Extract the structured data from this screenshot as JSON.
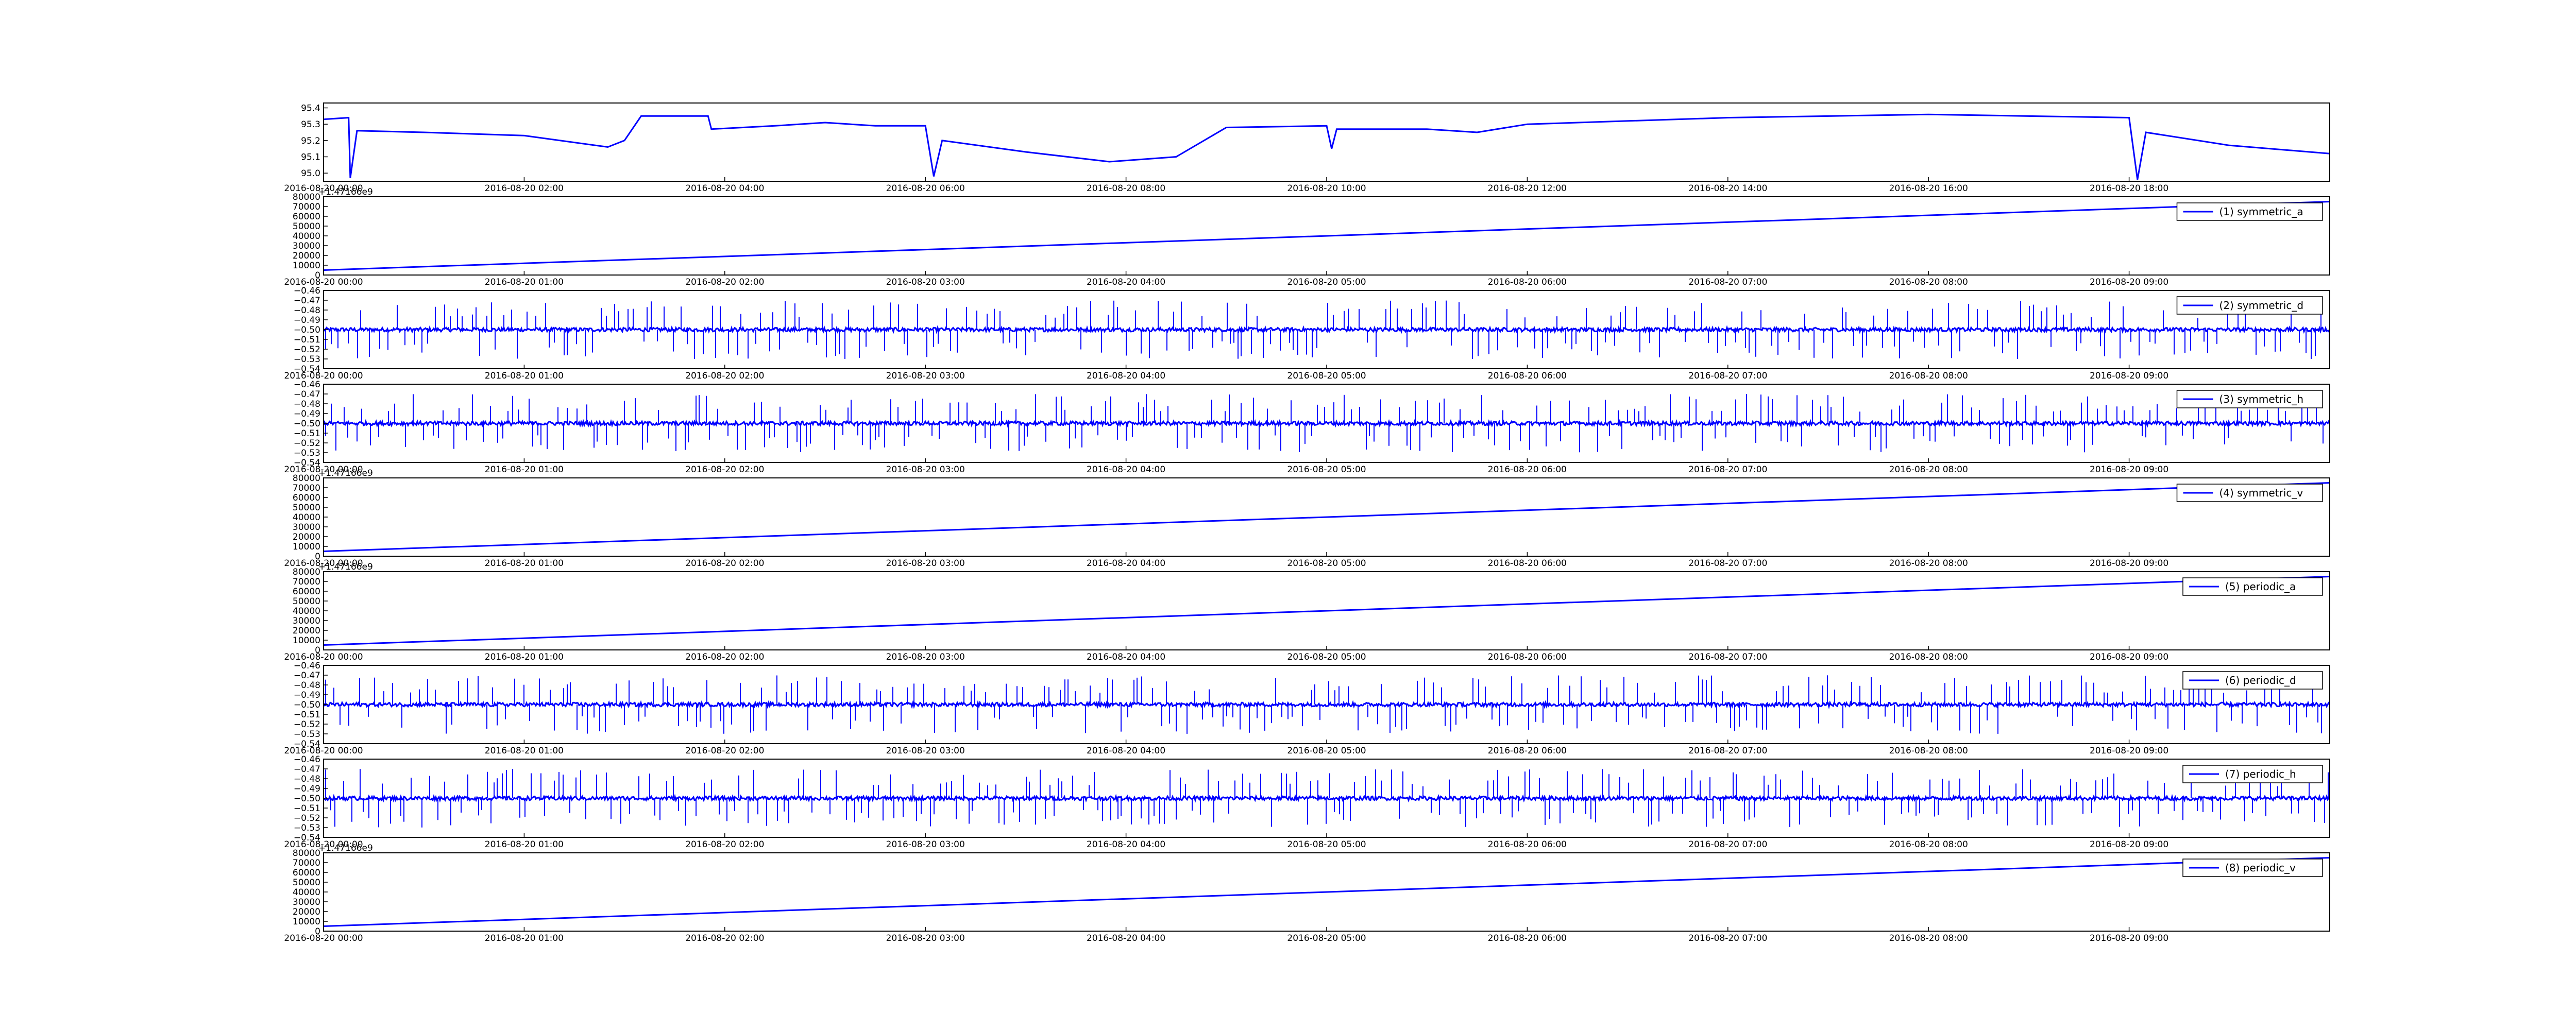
{
  "figure": {
    "background": "#ffffff",
    "line_color": "#0000ff",
    "axes_color": "#000000"
  },
  "chart_data": [
    {
      "type": "line",
      "title": "",
      "xlabel": "",
      "ylabel": "",
      "legend": null,
      "x_tick_labels": [
        "2016-08-20 00:00",
        "2016-08-20 02:00",
        "2016-08-20 04:00",
        "2016-08-20 06:00",
        "2016-08-20 08:00",
        "2016-08-20 10:00",
        "2016-08-20 12:00",
        "2016-08-20 14:00",
        "2016-08-20 16:00",
        "2016-08-20 18:00"
      ],
      "y_tick_labels": [
        "95.0",
        "95.1",
        "95.2",
        "95.3",
        "95.4"
      ],
      "xlim": [
        "2016-08-20 00:00",
        "2016-08-20 20:00"
      ],
      "ylim": [
        94.95,
        95.43
      ],
      "x": [
        "2016-08-20 00:00",
        "2016-08-20 00:15",
        "2016-08-20 00:16",
        "2016-08-20 00:20",
        "2016-08-20 01:00",
        "2016-08-20 02:00",
        "2016-08-20 02:50",
        "2016-08-20 03:00",
        "2016-08-20 03:10",
        "2016-08-20 03:50",
        "2016-08-20 03:52",
        "2016-08-20 04:30",
        "2016-08-20 05:00",
        "2016-08-20 05:30",
        "2016-08-20 06:00",
        "2016-08-20 06:05",
        "2016-08-20 06:10",
        "2016-08-20 07:00",
        "2016-08-20 07:50",
        "2016-08-20 08:30",
        "2016-08-20 09:00",
        "2016-08-20 10:00",
        "2016-08-20 10:03",
        "2016-08-20 10:06",
        "2016-08-20 11:00",
        "2016-08-20 11:30",
        "2016-08-20 12:00",
        "2016-08-20 14:00",
        "2016-08-20 16:00",
        "2016-08-20 18:00",
        "2016-08-20 18:05",
        "2016-08-20 18:10",
        "2016-08-20 19:00",
        "2016-08-20 20:00"
      ],
      "values": [
        95.33,
        95.34,
        94.97,
        95.26,
        95.25,
        95.23,
        95.16,
        95.2,
        95.35,
        95.35,
        95.27,
        95.29,
        95.31,
        95.29,
        95.29,
        94.98,
        95.2,
        95.13,
        95.07,
        95.1,
        95.28,
        95.29,
        95.15,
        95.27,
        95.27,
        95.25,
        95.3,
        95.34,
        95.36,
        95.34,
        94.96,
        95.25,
        95.17,
        95.12
      ]
    },
    {
      "type": "line",
      "title": "",
      "xlabel": "",
      "ylabel": "",
      "offset_label": "+1.47166e9",
      "x_tick_labels": [
        "2016-08-20 00:00",
        "2016-08-20 01:00",
        "2016-08-20 02:00",
        "2016-08-20 03:00",
        "2016-08-20 04:00",
        "2016-08-20 05:00",
        "2016-08-20 06:00",
        "2016-08-20 07:00",
        "2016-08-20 08:00",
        "2016-08-20 09:00"
      ],
      "y_tick_labels": [
        "0",
        "10000",
        "20000",
        "30000",
        "40000",
        "50000",
        "60000",
        "70000",
        "80000"
      ],
      "xlim": [
        "2016-08-20 00:00",
        "2016-08-20 10:00"
      ],
      "ylim": [
        0,
        80000
      ],
      "x": [
        "2016-08-20 00:00",
        "2016-08-20 10:00"
      ],
      "values": [
        5000,
        75000
      ],
      "series": [
        {
          "name": "(1) symmetric_a",
          "values": [
            5000,
            75000
          ]
        }
      ]
    },
    {
      "type": "line",
      "title": "",
      "xlabel": "",
      "ylabel": "",
      "x_tick_labels": [
        "2016-08-20 00:00",
        "2016-08-20 01:00",
        "2016-08-20 02:00",
        "2016-08-20 03:00",
        "2016-08-20 04:00",
        "2016-08-20 05:00",
        "2016-08-20 06:00",
        "2016-08-20 07:00",
        "2016-08-20 08:00",
        "2016-08-20 09:00"
      ],
      "y_tick_labels": [
        "−0.54",
        "−0.53",
        "−0.52",
        "−0.51",
        "−0.50",
        "−0.49",
        "−0.48",
        "−0.47",
        "−0.46"
      ],
      "xlim": [
        "2016-08-20 00:00",
        "2016-08-20 10:00"
      ],
      "ylim": [
        -0.54,
        -0.46
      ],
      "baseline": -0.5,
      "spike_range": [
        -0.53,
        -0.47
      ],
      "series": [
        {
          "name": "(2) symmetric_d",
          "noise": "dense spikes about -0.50"
        }
      ]
    },
    {
      "type": "line",
      "title": "",
      "xlabel": "",
      "ylabel": "",
      "x_tick_labels": [
        "2016-08-20 00:00",
        "2016-08-20 01:00",
        "2016-08-20 02:00",
        "2016-08-20 03:00",
        "2016-08-20 04:00",
        "2016-08-20 05:00",
        "2016-08-20 06:00",
        "2016-08-20 07:00",
        "2016-08-20 08:00",
        "2016-08-20 09:00"
      ],
      "y_tick_labels": [
        "−0.54",
        "−0.53",
        "−0.52",
        "−0.51",
        "−0.50",
        "−0.49",
        "−0.48",
        "−0.47",
        "−0.46"
      ],
      "xlim": [
        "2016-08-20 00:00",
        "2016-08-20 10:00"
      ],
      "ylim": [
        -0.54,
        -0.46
      ],
      "baseline": -0.5,
      "spike_range": [
        -0.53,
        -0.47
      ],
      "series": [
        {
          "name": "(3) symmetric_h",
          "noise": "dense spikes about -0.50"
        }
      ]
    },
    {
      "type": "line",
      "title": "",
      "xlabel": "",
      "ylabel": "",
      "offset_label": "+1.47166e9",
      "x_tick_labels": [
        "2016-08-20 00:00",
        "2016-08-20 01:00",
        "2016-08-20 02:00",
        "2016-08-20 03:00",
        "2016-08-20 04:00",
        "2016-08-20 05:00",
        "2016-08-20 06:00",
        "2016-08-20 07:00",
        "2016-08-20 08:00",
        "2016-08-20 09:00"
      ],
      "y_tick_labels": [
        "0",
        "10000",
        "20000",
        "30000",
        "40000",
        "50000",
        "60000",
        "70000",
        "80000"
      ],
      "xlim": [
        "2016-08-20 00:00",
        "2016-08-20 10:00"
      ],
      "ylim": [
        0,
        80000
      ],
      "x": [
        "2016-08-20 00:00",
        "2016-08-20 10:00"
      ],
      "values": [
        5000,
        75000
      ],
      "series": [
        {
          "name": "(4) symmetric_v",
          "values": [
            5000,
            75000
          ]
        }
      ]
    },
    {
      "type": "line",
      "title": "",
      "xlabel": "",
      "ylabel": "",
      "offset_label": "+1.47166e9",
      "x_tick_labels": [
        "2016-08-20 00:00",
        "2016-08-20 01:00",
        "2016-08-20 02:00",
        "2016-08-20 03:00",
        "2016-08-20 04:00",
        "2016-08-20 05:00",
        "2016-08-20 06:00",
        "2016-08-20 07:00",
        "2016-08-20 08:00",
        "2016-08-20 09:00"
      ],
      "y_tick_labels": [
        "0",
        "10000",
        "20000",
        "30000",
        "40000",
        "50000",
        "60000",
        "70000",
        "80000"
      ],
      "xlim": [
        "2016-08-20 00:00",
        "2016-08-20 10:00"
      ],
      "ylim": [
        0,
        80000
      ],
      "x": [
        "2016-08-20 00:00",
        "2016-08-20 10:00"
      ],
      "values": [
        5000,
        75000
      ],
      "series": [
        {
          "name": "(5) periodic_a",
          "values": [
            5000,
            75000
          ]
        }
      ]
    },
    {
      "type": "line",
      "title": "",
      "xlabel": "",
      "ylabel": "",
      "x_tick_labels": [
        "2016-08-20 00:00",
        "2016-08-20 01:00",
        "2016-08-20 02:00",
        "2016-08-20 03:00",
        "2016-08-20 04:00",
        "2016-08-20 05:00",
        "2016-08-20 06:00",
        "2016-08-20 07:00",
        "2016-08-20 08:00",
        "2016-08-20 09:00"
      ],
      "y_tick_labels": [
        "−0.54",
        "−0.53",
        "−0.52",
        "−0.51",
        "−0.50",
        "−0.49",
        "−0.48",
        "−0.47",
        "−0.46"
      ],
      "xlim": [
        "2016-08-20 00:00",
        "2016-08-20 10:00"
      ],
      "ylim": [
        -0.54,
        -0.46
      ],
      "baseline": -0.5,
      "spike_range": [
        -0.53,
        -0.47
      ],
      "series": [
        {
          "name": "(6) periodic_d",
          "noise": "dense spikes about -0.50"
        }
      ]
    },
    {
      "type": "line",
      "title": "",
      "xlabel": "",
      "ylabel": "",
      "x_tick_labels": [
        "2016-08-20 00:00",
        "2016-08-20 01:00",
        "2016-08-20 02:00",
        "2016-08-20 03:00",
        "2016-08-20 04:00",
        "2016-08-20 05:00",
        "2016-08-20 06:00",
        "2016-08-20 07:00",
        "2016-08-20 08:00",
        "2016-08-20 09:00"
      ],
      "y_tick_labels": [
        "−0.54",
        "−0.53",
        "−0.52",
        "−0.51",
        "−0.50",
        "−0.49",
        "−0.48",
        "−0.47",
        "−0.46"
      ],
      "xlim": [
        "2016-08-20 00:00",
        "2016-08-20 10:00"
      ],
      "ylim": [
        -0.54,
        -0.46
      ],
      "baseline": -0.5,
      "spike_range": [
        -0.53,
        -0.47
      ],
      "series": [
        {
          "name": "(7) periodic_h",
          "noise": "dense spikes about -0.50"
        }
      ]
    },
    {
      "type": "line",
      "title": "",
      "xlabel": "",
      "ylabel": "",
      "offset_label": "+1.47166e9",
      "x_tick_labels": [
        "2016-08-20 00:00",
        "2016-08-20 01:00",
        "2016-08-20 02:00",
        "2016-08-20 03:00",
        "2016-08-20 04:00",
        "2016-08-20 05:00",
        "2016-08-20 06:00",
        "2016-08-20 07:00",
        "2016-08-20 08:00",
        "2016-08-20 09:00"
      ],
      "y_tick_labels": [
        "0",
        "10000",
        "20000",
        "30000",
        "40000",
        "50000",
        "60000",
        "70000",
        "80000"
      ],
      "xlim": [
        "2016-08-20 00:00",
        "2016-08-20 10:00"
      ],
      "ylim": [
        0,
        80000
      ],
      "x": [
        "2016-08-20 00:00",
        "2016-08-20 10:00"
      ],
      "values": [
        5000,
        75000
      ],
      "series": [
        {
          "name": "(8) periodic_v",
          "values": [
            5000,
            75000
          ]
        }
      ]
    }
  ]
}
